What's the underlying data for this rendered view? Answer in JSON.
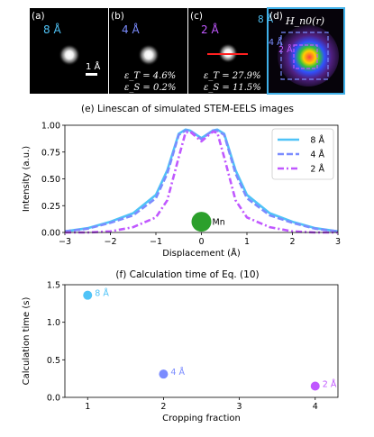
{
  "panels": [
    {
      "letter": "(a)",
      "size": "8 Å",
      "size_color": "#4fc3f7"
    },
    {
      "letter": "(b)",
      "size": "4 Å",
      "size_color": "#7b8cff",
      "eps_t": "ε_T = 4.6%",
      "eps_s": "ε_S = 0.2%"
    },
    {
      "letter": "(c)",
      "size": "2 Å",
      "size_color": "#c058ff",
      "eps_t": "ε_T = 27.9%",
      "eps_s": "ε_S = 11.5%"
    },
    {
      "letter": "(d)",
      "hamiltonian": "H_n0(r)",
      "labels": [
        "8 Å",
        "4 Å",
        "2 Å"
      ]
    }
  ],
  "scale_bar": "1 Å",
  "colors": {
    "s8": "#4fc3f7",
    "s4": "#7b8cff",
    "s2": "#c058ff",
    "mn": "#2ca02c",
    "linecut": "#ff2020",
    "panel_d_border": "#3fb0e8"
  },
  "chart_data": [
    {
      "type": "line",
      "title": "(e) Linescan of simulated STEM-EELS images",
      "xlabel": "Displacement (Å)",
      "ylabel": "Intensity (a.u.)",
      "xlim": [
        -3,
        3
      ],
      "ylim": [
        0,
        1.0
      ],
      "xticks": [
        "−3",
        "−2",
        "−1",
        "0",
        "1",
        "2",
        "3"
      ],
      "yticks": [
        "0.00",
        "0.25",
        "0.50",
        "0.75",
        "1.00"
      ],
      "legend_position": "top-right",
      "annotation": {
        "label": "Mn",
        "x": 0.0,
        "y": 0.1
      },
      "x": [
        -3.0,
        -2.5,
        -2.0,
        -1.5,
        -1.0,
        -0.75,
        -0.5,
        -0.35,
        -0.25,
        0.0,
        0.25,
        0.35,
        0.5,
        0.75,
        1.0,
        1.5,
        2.0,
        2.5,
        3.0
      ],
      "series": [
        {
          "name": "8 Å",
          "style": "solid",
          "values": [
            0.01,
            0.04,
            0.1,
            0.18,
            0.35,
            0.58,
            0.92,
            0.96,
            0.95,
            0.88,
            0.95,
            0.96,
            0.92,
            0.58,
            0.35,
            0.18,
            0.1,
            0.04,
            0.01
          ]
        },
        {
          "name": "4 Å",
          "style": "dashed",
          "values": [
            0.01,
            0.035,
            0.09,
            0.16,
            0.32,
            0.55,
            0.91,
            0.95,
            0.95,
            0.87,
            0.95,
            0.95,
            0.91,
            0.55,
            0.32,
            0.16,
            0.09,
            0.035,
            0.01
          ]
        },
        {
          "name": "2 Å",
          "style": "dashdot",
          "values": [
            0.0,
            0.0,
            0.01,
            0.05,
            0.14,
            0.3,
            0.7,
            0.93,
            0.94,
            0.85,
            0.94,
            0.93,
            0.7,
            0.3,
            0.14,
            0.05,
            0.01,
            0.0,
            0.0
          ]
        }
      ]
    },
    {
      "type": "scatter",
      "title": "(f) Calculation time of Eq. (10)",
      "xlabel": "Cropping fraction",
      "ylabel": "Calculation time (s)",
      "xlim": [
        0.7,
        4.3
      ],
      "ylim": [
        0,
        1.5
      ],
      "xticks": [
        "1",
        "2",
        "3",
        "4"
      ],
      "yticks": [
        "0.0",
        "0.5",
        "1.0",
        "1.5"
      ],
      "points": [
        {
          "x": 1,
          "y": 1.36,
          "label": "8 Å"
        },
        {
          "x": 2,
          "y": 0.31,
          "label": "4 Å"
        },
        {
          "x": 4,
          "y": 0.15,
          "label": "2 Å"
        }
      ]
    }
  ]
}
